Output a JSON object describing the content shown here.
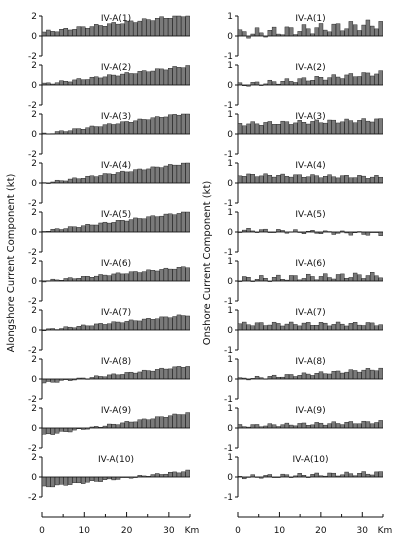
{
  "chart_data": {
    "type": "bar",
    "x_axis": {
      "range": [
        0,
        35
      ],
      "ticks": [
        "0",
        "10",
        "20",
        "30"
      ],
      "tick_values": [
        0,
        10,
        20,
        30
      ],
      "unit": "Km"
    },
    "columns": [
      {
        "ylabel": "Alongshore Current Component (kt)",
        "ylim": [
          -2,
          2
        ],
        "y_ticks": [
          "2",
          "0",
          "-2"
        ],
        "y_tick_values": [
          2,
          0,
          -2
        ],
        "panels": [
          {
            "label": "IV-A(1)",
            "start": 0.4,
            "end": 2.1,
            "wave": 0.15
          },
          {
            "label": "IV-A(2)",
            "start": 0.1,
            "end": 1.9,
            "wave": 0.12
          },
          {
            "label": "IV-A(3)",
            "start": 0.0,
            "end": 2.1,
            "wave": 0.1
          },
          {
            "label": "IV-A(4)",
            "start": 0.0,
            "end": 2.0,
            "wave": 0.1
          },
          {
            "label": "IV-A(5)",
            "start": 0.1,
            "end": 2.0,
            "wave": 0.1
          },
          {
            "label": "IV-A(6)",
            "start": 0.0,
            "end": 1.4,
            "wave": 0.1
          },
          {
            "label": "IV-A(7)",
            "start": 0.0,
            "end": 1.5,
            "wave": 0.1
          },
          {
            "label": "IV-A(8)",
            "start": -0.4,
            "end": 1.3,
            "wave": 0.1
          },
          {
            "label": "IV-A(9)",
            "start": -0.7,
            "end": 1.5,
            "wave": 0.1
          },
          {
            "label": "IV-A(10)",
            "start": -1.0,
            "end": 0.6,
            "wave": 0.1
          }
        ]
      },
      {
        "ylabel": "Onshore Current Component (kt)",
        "ylim": [
          -1,
          1
        ],
        "y_ticks": [
          "1",
          "0",
          "-1"
        ],
        "y_tick_values": [
          1,
          0,
          -1
        ],
        "panels": [
          {
            "label": "IV-A(1)",
            "start": 0.1,
            "end": 0.6,
            "wave": 0.25
          },
          {
            "label": "IV-A(2)",
            "start": 0.0,
            "end": 0.6,
            "wave": 0.12
          },
          {
            "label": "IV-A(3)",
            "start": 0.5,
            "end": 0.7,
            "wave": 0.1
          },
          {
            "label": "IV-A(4)",
            "start": 0.4,
            "end": 0.3,
            "wave": 0.08
          },
          {
            "label": "IV-A(5)",
            "start": 0.1,
            "end": -0.1,
            "wave": 0.1
          },
          {
            "label": "IV-A(6)",
            "start": 0.1,
            "end": 0.3,
            "wave": 0.15
          },
          {
            "label": "IV-A(7)",
            "start": 0.3,
            "end": 0.3,
            "wave": 0.1
          },
          {
            "label": "IV-A(8)",
            "start": 0.0,
            "end": 0.5,
            "wave": 0.08
          },
          {
            "label": "IV-A(9)",
            "start": 0.1,
            "end": 0.3,
            "wave": 0.08
          },
          {
            "label": "IV-A(10)",
            "start": 0.0,
            "end": 0.2,
            "wave": 0.1
          }
        ]
      }
    ],
    "bar_color": "#7a7a7a",
    "bar_edge_color": "#111111",
    "grid": false,
    "legend": "none"
  }
}
